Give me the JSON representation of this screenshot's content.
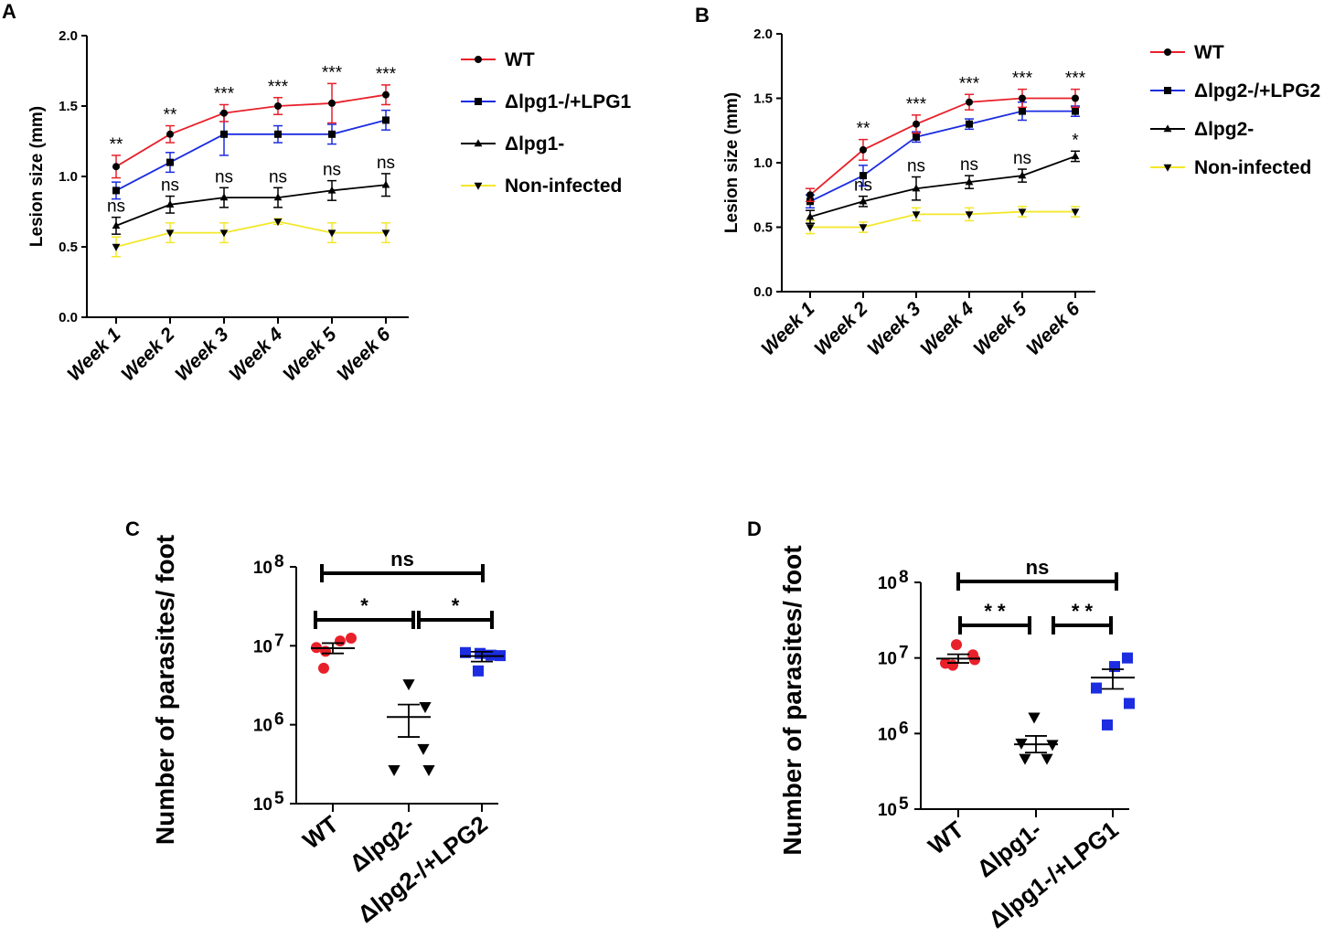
{
  "chart_data": [
    {
      "type": "line",
      "panel": "A",
      "title": "",
      "xlabel": "",
      "ylabel": "Lesion size (mm)",
      "ylim": [
        0,
        2.0
      ],
      "yticks": [
        "0.0",
        "0.5",
        "1.0",
        "1.5",
        "2.0"
      ],
      "categories": [
        "Week 1",
        "Week 2",
        "Week 3",
        "Week 4",
        "Week 5",
        "Week 6"
      ],
      "series": [
        {
          "name": "WT",
          "color": "#e8202a",
          "marker": "circle",
          "values": [
            1.07,
            1.3,
            1.45,
            1.5,
            1.52,
            1.58
          ],
          "errors": [
            0.08,
            0.06,
            0.06,
            0.06,
            0.14,
            0.07
          ]
        },
        {
          "name": "Δlpg1-/+LPG1",
          "color": "#1c2ce0",
          "marker": "square",
          "values": [
            0.9,
            1.1,
            1.3,
            1.3,
            1.3,
            1.4
          ],
          "errors": [
            0.06,
            0.07,
            0.15,
            0.06,
            0.07,
            0.07
          ]
        },
        {
          "name": "Δlpg1-",
          "color": "#000000",
          "marker": "triangle-up",
          "values": [
            0.65,
            0.8,
            0.85,
            0.85,
            0.9,
            0.94
          ],
          "errors": [
            0.06,
            0.06,
            0.07,
            0.07,
            0.07,
            0.08
          ]
        },
        {
          "name": "Non-infected",
          "color": "#f2e82a",
          "marker": "triangle-down",
          "values": [
            0.5,
            0.6,
            0.6,
            0.68,
            0.6,
            0.6
          ],
          "errors": [
            0.07,
            0.07,
            0.07,
            0.02,
            0.07,
            0.07
          ]
        }
      ],
      "annotations": [
        {
          "category": "Week 1",
          "labels": [
            "**",
            "ns"
          ]
        },
        {
          "category": "Week 2",
          "labels": [
            "**",
            "ns"
          ]
        },
        {
          "category": "Week 3",
          "labels": [
            "***",
            "ns"
          ]
        },
        {
          "category": "Week 4",
          "labels": [
            "***",
            "ns"
          ]
        },
        {
          "category": "Week 5",
          "labels": [
            "***",
            "ns"
          ]
        },
        {
          "category": "Week 6",
          "labels": [
            "***",
            "ns"
          ]
        }
      ]
    },
    {
      "type": "line",
      "panel": "B",
      "title": "",
      "xlabel": "",
      "ylabel": "Lesion size (mm)",
      "ylim": [
        0,
        2.0
      ],
      "yticks": [
        "0.0",
        "0.5",
        "1.0",
        "1.5",
        "2.0"
      ],
      "categories": [
        "Week 1",
        "Week 2",
        "Week 3",
        "Week 4",
        "Week 5",
        "Week 6"
      ],
      "series": [
        {
          "name": "WT",
          "color": "#e8202a",
          "marker": "circle",
          "values": [
            0.75,
            1.1,
            1.3,
            1.47,
            1.5,
            1.5
          ],
          "errors": [
            0.05,
            0.08,
            0.07,
            0.06,
            0.07,
            0.07
          ]
        },
        {
          "name": "Δlpg2-/+LPG2",
          "color": "#1c2ce0",
          "marker": "square",
          "values": [
            0.7,
            0.9,
            1.2,
            1.3,
            1.4,
            1.4
          ],
          "errors": [
            0.05,
            0.08,
            0.04,
            0.04,
            0.07,
            0.04
          ]
        },
        {
          "name": "Δlpg2-",
          "color": "#000000",
          "marker": "triangle-up",
          "values": [
            0.58,
            0.7,
            0.8,
            0.85,
            0.9,
            1.05
          ],
          "errors": [
            0.05,
            0.04,
            0.09,
            0.05,
            0.05,
            0.04
          ]
        },
        {
          "name": "Non-infected",
          "color": "#f2e82a",
          "marker": "triangle-down",
          "values": [
            0.5,
            0.5,
            0.6,
            0.6,
            0.62,
            0.62
          ],
          "errors": [
            0.05,
            0.04,
            0.05,
            0.05,
            0.04,
            0.04
          ]
        }
      ],
      "annotations": [
        {
          "category": "Week 2",
          "labels": [
            "**",
            "ns"
          ]
        },
        {
          "category": "Week 3",
          "labels": [
            "***",
            "ns"
          ]
        },
        {
          "category": "Week 4",
          "labels": [
            "***",
            "ns"
          ]
        },
        {
          "category": "Week 5",
          "labels": [
            "***",
            "ns"
          ]
        },
        {
          "category": "Week 6",
          "labels": [
            "***",
            "*"
          ]
        }
      ]
    },
    {
      "type": "scatter",
      "panel": "C",
      "title": "",
      "xlabel": "",
      "ylabel": "Number of parasites/ foot",
      "yscale": "log",
      "ylim": [
        100000,
        100000000
      ],
      "yticks": [
        {
          "base": "10",
          "exp": "8"
        },
        {
          "base": "10",
          "exp": "7"
        },
        {
          "base": "10",
          "exp": "6"
        },
        {
          "base": "10",
          "exp": "5"
        }
      ],
      "categories": [
        "WT",
        "Δlpg2-",
        "Δlpg2-/+LPG2"
      ],
      "groups": [
        {
          "name": "WT",
          "color": "#e8202a",
          "marker": "circle",
          "points": [
            12500000,
            11500000,
            9500000,
            8500000,
            5200000
          ],
          "mean": 9300000,
          "sem_low": 8000000,
          "sem_high": 10800000
        },
        {
          "name": "Δlpg2-",
          "color": "#000000",
          "marker": "triangle-down",
          "points": [
            3300000,
            1700000,
            500000,
            270000,
            270000
          ],
          "mean": 1250000,
          "sem_low": 700000,
          "sem_high": 1800000
        },
        {
          "name": "Δlpg2-/+LPG2",
          "color": "#1c2ce0",
          "marker": "square",
          "points": [
            8200000,
            8000000,
            7600000,
            7500000,
            4800000
          ],
          "mean": 7400000,
          "sem_low": 6300000,
          "sem_high": 8400000
        }
      ],
      "comparisons": [
        {
          "from": "WT",
          "to": "Δlpg2-/+LPG2",
          "label": "ns"
        },
        {
          "from": "WT",
          "to": "Δlpg2-",
          "label": "*"
        },
        {
          "from": "Δlpg2-",
          "to": "Δlpg2-/+LPG2",
          "label": "*"
        }
      ]
    },
    {
      "type": "scatter",
      "panel": "D",
      "title": "",
      "xlabel": "",
      "ylabel": "Number of parasites/ foot",
      "yscale": "log",
      "ylim": [
        100000,
        100000000
      ],
      "yticks": [
        {
          "base": "10",
          "exp": "8"
        },
        {
          "base": "10",
          "exp": "7"
        },
        {
          "base": "10",
          "exp": "6"
        },
        {
          "base": "10",
          "exp": "5"
        }
      ],
      "categories": [
        "WT",
        "Δlpg1-",
        "Δlpg1-/+LPG1"
      ],
      "groups": [
        {
          "name": "WT",
          "color": "#e8202a",
          "marker": "circle",
          "points": [
            15000000,
            11000000,
            9500000,
            8500000,
            8000000
          ],
          "mean": 9800000,
          "sem_low": 8600000,
          "sem_high": 11200000
        },
        {
          "name": "Δlpg1-",
          "color": "#000000",
          "marker": "triangle-down",
          "points": [
            1650000,
            750000,
            720000,
            470000,
            470000
          ],
          "mean": 720000,
          "sem_low": 560000,
          "sem_high": 930000
        },
        {
          "name": "Δlpg1-/+LPG1",
          "color": "#1c2ce0",
          "marker": "square",
          "points": [
            10000000,
            7700000,
            4000000,
            2500000,
            1300000
          ],
          "mean": 5500000,
          "sem_low": 3900000,
          "sem_high": 7100000
        }
      ],
      "comparisons": [
        {
          "from": "WT",
          "to": "Δlpg1-/+LPG1",
          "label": "ns"
        },
        {
          "from": "WT",
          "to": "Δlpg1-",
          "label": "* *"
        },
        {
          "from": "Δlpg1-",
          "to": "Δlpg1-/+LPG1",
          "label": "* *"
        }
      ]
    }
  ]
}
